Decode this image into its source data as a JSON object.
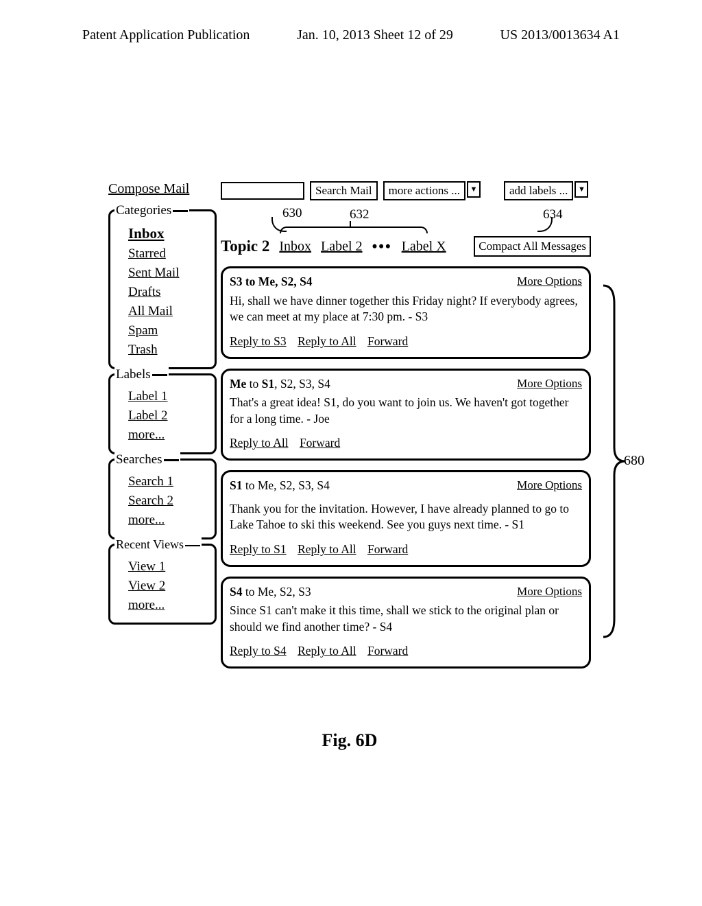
{
  "page_header": {
    "left": "Patent Application Publication",
    "center": "Jan. 10, 2013  Sheet 12 of 29",
    "right": "US 2013/0013634 A1"
  },
  "sidebar": {
    "compose": "Compose Mail",
    "categories": {
      "title": "Categories",
      "items": [
        "Inbox",
        "Starred",
        "Sent Mail",
        "Drafts",
        "All Mail",
        "Spam",
        "Trash"
      ]
    },
    "labels": {
      "title": "Labels",
      "items": [
        "Label 1",
        "Label 2",
        "more..."
      ]
    },
    "searches": {
      "title": "Searches",
      "items": [
        "Search 1",
        "Search 2",
        "more..."
      ]
    },
    "recent": {
      "title": "Recent Views",
      "items": [
        "View 1",
        "View 2",
        "more..."
      ]
    }
  },
  "toolbar": {
    "search_btn": "Search Mail",
    "more_actions": "more actions ...",
    "add_labels": "add labels ..."
  },
  "callouts": {
    "a": "630",
    "b": "632",
    "c": "634"
  },
  "topic": {
    "title": "Topic 2",
    "labels": [
      "Inbox",
      "Label 2",
      "Label X"
    ],
    "compact": "Compact All Messages"
  },
  "messages": [
    {
      "from_html": "<b>S3 to Me, S2, S4</b>",
      "more": "More Options",
      "body": "Hi, shall we have dinner together this Friday night? If everybody agrees, we can meet at my place at 7:30 pm. - S3",
      "actions": [
        "Reply to S3",
        "Reply to All",
        "Forward"
      ]
    },
    {
      "from_html": "<b>Me</b> to <b>S1</b>, S2, S3, S4",
      "more": "More Options",
      "body": "That's a great idea! S1, do you want to join us. We haven't got together for a long time. - Joe",
      "actions": [
        "Reply to All",
        "Forward"
      ]
    },
    {
      "from_html": "<b>S1</b> to Me, S2, S3, S4",
      "more": "More Options",
      "body": "Thank you for the invitation. However, I have already planned to go to Lake Tahoe to ski this weekend. See you guys next time. - S1",
      "actions": [
        "Reply to S1",
        "Reply to All",
        "Forward"
      ]
    },
    {
      "from_html": "<b>S4</b> to Me, S2, S3",
      "more": "More Options",
      "body": "Since S1 can't make it this time, shall we stick to the original plan or should we find another time? - S4",
      "actions": [
        "Reply to S4",
        "Reply to All",
        "Forward"
      ]
    }
  ],
  "brace_label": "680",
  "figure_label": "Fig. 6D",
  "colors": {
    "bg": "#ffffff",
    "line": "#000000"
  }
}
